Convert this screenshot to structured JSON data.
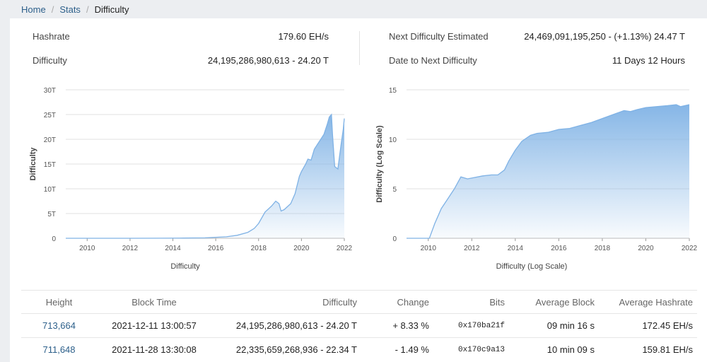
{
  "breadcrumb": [
    {
      "label": "Home",
      "active": false
    },
    {
      "label": "Stats",
      "active": false
    },
    {
      "label": "Difficulty",
      "active": true
    }
  ],
  "stats": {
    "hashrate_label": "Hashrate",
    "hashrate_value": "179.60 EH/s",
    "difficulty_label": "Difficulty",
    "difficulty_value": "24,195,286,980,613 - 24.20 T",
    "next_label": "Next Difficulty Estimated",
    "next_value": "24,469,091,195,250 - (+1.13%) 24.47 T",
    "date_label": "Date to Next Difficulty",
    "date_value": "11 Days 12 Hours"
  },
  "chart_data": [
    {
      "type": "area",
      "title": "",
      "xlabel": "Difficulty",
      "ylabel": "Difficulty",
      "x_ticks": [
        "2010",
        "2012",
        "2014",
        "2016",
        "2018",
        "2020",
        "2022"
      ],
      "y_ticks": [
        "0",
        "5T",
        "10T",
        "15T",
        "20T",
        "25T",
        "30T"
      ],
      "xlim": [
        2009.0,
        2022.0
      ],
      "ylim": [
        0,
        30
      ],
      "y_unit": "T",
      "grid": true,
      "color": "#7fb2e5",
      "series": [
        {
          "x": [
            2009.0,
            2010.5,
            2012.0,
            2013.5,
            2014.5,
            2015.5,
            2016.5,
            2017.0,
            2017.5,
            2017.8,
            2018.0,
            2018.3,
            2018.6,
            2018.8,
            2018.95,
            2019.05,
            2019.2,
            2019.5,
            2019.7,
            2019.9,
            2020.0,
            2020.2,
            2020.3,
            2020.45,
            2020.6,
            2020.75,
            2020.9,
            2021.05,
            2021.2,
            2021.3,
            2021.4,
            2021.45,
            2021.55,
            2021.7,
            2021.85,
            2021.95,
            2022.0
          ],
          "y": [
            0,
            0,
            0,
            0.02,
            0.05,
            0.08,
            0.3,
            0.6,
            1.2,
            2.0,
            3.0,
            5.3,
            6.5,
            7.5,
            7.0,
            5.5,
            5.8,
            7.0,
            9.0,
            12.5,
            13.5,
            15.0,
            16.0,
            15.8,
            18.0,
            19.0,
            20.0,
            21.0,
            23.0,
            24.5,
            25.0,
            21.0,
            14.5,
            14.0,
            19.0,
            22.0,
            24.2
          ]
        }
      ]
    },
    {
      "type": "area",
      "title": "",
      "xlabel": "Difficulty (Log Scale)",
      "ylabel": "Difficulty (Log Scale)",
      "x_ticks": [
        "2010",
        "2012",
        "2014",
        "2016",
        "2018",
        "2020",
        "2022"
      ],
      "y_ticks": [
        "0",
        "5",
        "10",
        "15"
      ],
      "xlim": [
        2009.0,
        2022.0
      ],
      "ylim": [
        0,
        15
      ],
      "grid": true,
      "color": "#7fb2e5",
      "series": [
        {
          "x": [
            2009.0,
            2010.05,
            2010.3,
            2010.6,
            2010.9,
            2011.2,
            2011.5,
            2011.8,
            2012.5,
            2012.9,
            2013.2,
            2013.5,
            2013.7,
            2014.0,
            2014.3,
            2014.7,
            2015.0,
            2015.5,
            2016.0,
            2016.5,
            2017.0,
            2017.5,
            2018.0,
            2018.5,
            2019.0,
            2019.3,
            2019.6,
            2020.0,
            2020.5,
            2021.0,
            2021.4,
            2021.6,
            2022.0
          ],
          "y": [
            0,
            0,
            1.5,
            3.0,
            4.0,
            5.0,
            6.2,
            6.0,
            6.3,
            6.4,
            6.4,
            6.9,
            7.8,
            8.9,
            9.8,
            10.4,
            10.6,
            10.7,
            11.0,
            11.1,
            11.4,
            11.7,
            12.1,
            12.5,
            12.9,
            12.8,
            13.0,
            13.2,
            13.3,
            13.4,
            13.5,
            13.3,
            13.5
          ]
        }
      ]
    }
  ],
  "table": {
    "headers": [
      "Height",
      "Block Time",
      "Difficulty",
      "Change",
      "Bits",
      "Average Block",
      "Average Hashrate"
    ],
    "rows": [
      {
        "height": "713,664",
        "time": "2021-12-11 13:00:57",
        "difficulty": "24,195,286,980,613 - 24.20 T",
        "change": "+ 8.33 %",
        "change_dir": "up",
        "bits": "0x170ba21f",
        "avg_block": "09 min 16 s",
        "avg_hashrate": "172.45 EH/s"
      },
      {
        "height": "711,648",
        "time": "2021-11-28 13:30:08",
        "difficulty": "22,335,659,268,936 - 22.34 T",
        "change": "- 1.49 %",
        "change_dir": "down",
        "bits": "0x170c9a13",
        "avg_block": "10 min 09 s",
        "avg_hashrate": "159.81 EH/s"
      }
    ]
  }
}
